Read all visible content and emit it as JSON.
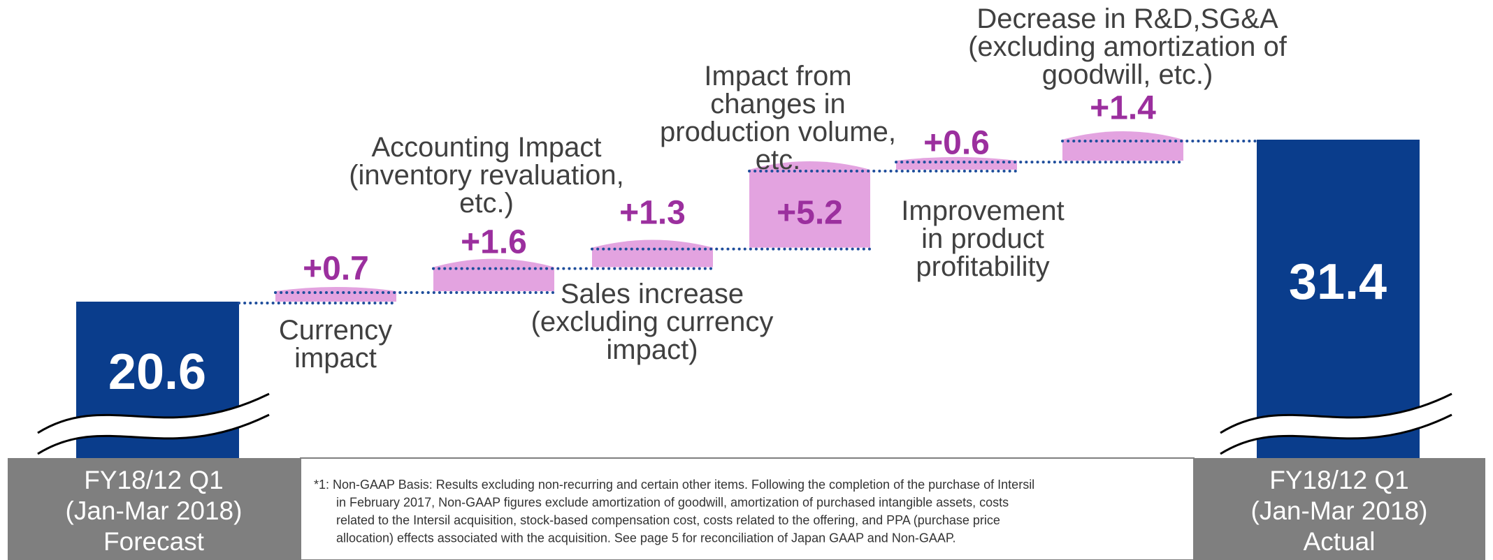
{
  "chart_data": {
    "type": "waterfall",
    "start": {
      "label": [
        "FY18/12 Q1",
        "(Jan-Mar 2018)",
        "Forecast"
      ],
      "value": 20.6,
      "color": "#0a3d8c"
    },
    "end": {
      "label": [
        "FY18/12 Q1",
        "(Jan-Mar 2018)",
        "Actual"
      ],
      "value": 31.4,
      "color": "#0a3d8c"
    },
    "categories": [
      [
        "Currency",
        "impact"
      ],
      [
        "Accounting Impact",
        "(inventory revaluation,",
        "etc.)"
      ],
      [
        "Sales increase",
        "(excluding currency",
        "impact)"
      ],
      [
        "Impact from",
        "changes in",
        "production volume,",
        "etc."
      ],
      [
        "Improvement",
        "in product",
        "profitability"
      ],
      [
        "Decrease in R&D,SG&A",
        "(excluding amortization of",
        "goodwill, etc.)"
      ]
    ],
    "values": [
      0.7,
      1.6,
      1.3,
      5.2,
      0.6,
      1.4
    ],
    "value_labels": [
      "+0.7",
      "+1.6",
      "+1.3",
      "+5.2",
      "+0.6",
      "+1.4"
    ],
    "color": "#e3a3e0",
    "footnote": [
      "*1: Non-GAAP Basis: Results excluding non-recurring and certain other items. Following the completion of the purchase of Intersil",
      "in February 2017, Non-GAAP figures exclude amortization of goodwill, amortization of purchased intangible assets, costs",
      "related to the Intersil acquisition, stock-based compensation cost, costs related to the offering, and PPA (purchase price",
      "allocation) effects associated with the acquisition. See page 5 for reconciliation of Japan GAAP and Non-GAAP."
    ]
  }
}
